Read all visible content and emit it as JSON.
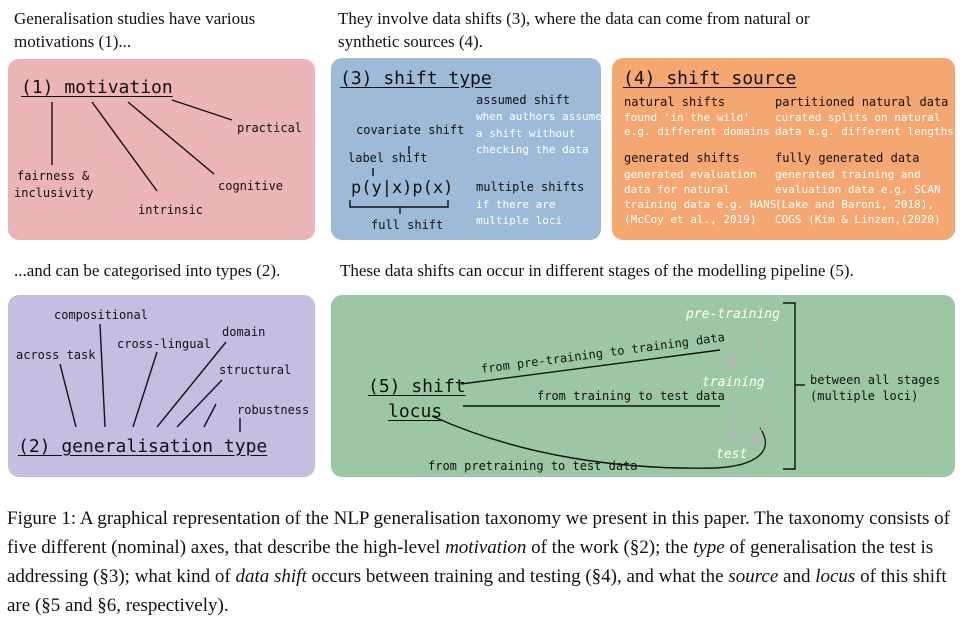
{
  "intro": {
    "motivation_line1": "Generalisation studies have various",
    "motivation_line2": "motivations (1)...",
    "shift_line1": "They involve data shifts (3), where the data can come from natural or",
    "shift_line2": "synthetic sources (4).",
    "types_line": "...and can be categorised into types (2).",
    "stages_line": "These data shifts can occur in different stages of the modelling pipeline (5)."
  },
  "motivation": {
    "title": "(1) motivation",
    "practical": "practical",
    "fairness_line1": "fairness &",
    "fairness_line2": "inclusivity",
    "cognitive": "cognitive",
    "intrinsic": "intrinsic"
  },
  "shift_type": {
    "title": "(3) shift type",
    "assumed": "assumed shift",
    "assumed_desc": [
      "when authors assume",
      "a shift without",
      "checking the data"
    ],
    "covariate": "covariate shift",
    "label": "label shift",
    "formula": "p(y|x)p(x)",
    "full": "full shift",
    "multiple": "multiple shifts",
    "multiple_desc": [
      "if there are",
      "multiple loci"
    ]
  },
  "shift_source": {
    "title": "(4) shift source",
    "natural": "natural shifts",
    "natural_desc": [
      "found 'in the wild'",
      "e.g. different domains"
    ],
    "partitioned": "partitioned natural data",
    "partitioned_desc": [
      "curated splits on natural",
      "data e.g. different lengths"
    ],
    "generated": "generated shifts",
    "generated_desc": [
      "generated evaluation",
      "data for natural",
      "training data e.g. HANS",
      "(McCoy et al., 2019)"
    ],
    "fully": "fully generated data",
    "fully_desc": [
      "generated training and",
      "evaluation data e.g. SCAN",
      "(Lake and Baroni, 2018),",
      "COGS (Kim & Linzen,(2020)"
    ]
  },
  "gen_type": {
    "title": "(2) generalisation type",
    "compositional": "compositional",
    "domain": "domain",
    "cross_lingual": "cross-lingual",
    "across_task": "across task",
    "structural": "structural",
    "robustness": "robustness"
  },
  "locus": {
    "title_line1": "(5) shift",
    "title_line2": "locus",
    "pretraining": "pre-training",
    "training": "training",
    "test": "test",
    "from_pre_to_train": "from pre-training to training data",
    "from_train_to_test": "from training to test data",
    "from_pre_to_test": "from pretraining to test data",
    "between_line1": "between all stages",
    "between_line2": "(multiple loci)"
  },
  "caption": {
    "p1": "Figure 1: A graphical representation of the NLP generalisation taxonomy we present in this paper. The taxonomy consists of five different (nominal) axes, that describe the high-level ",
    "motivation": "motivation",
    "p2": " of the work (§2); the ",
    "type": "type",
    "p3": " of generalisation the test is addressing (§3); what kind of ",
    "data_shift": "data shift",
    "p4": " occurs between training and testing (§4), and what the ",
    "source": "source",
    "p5": " and ",
    "locus": "locus",
    "p6": " of this shift are (§5 and §6, respectively)."
  }
}
